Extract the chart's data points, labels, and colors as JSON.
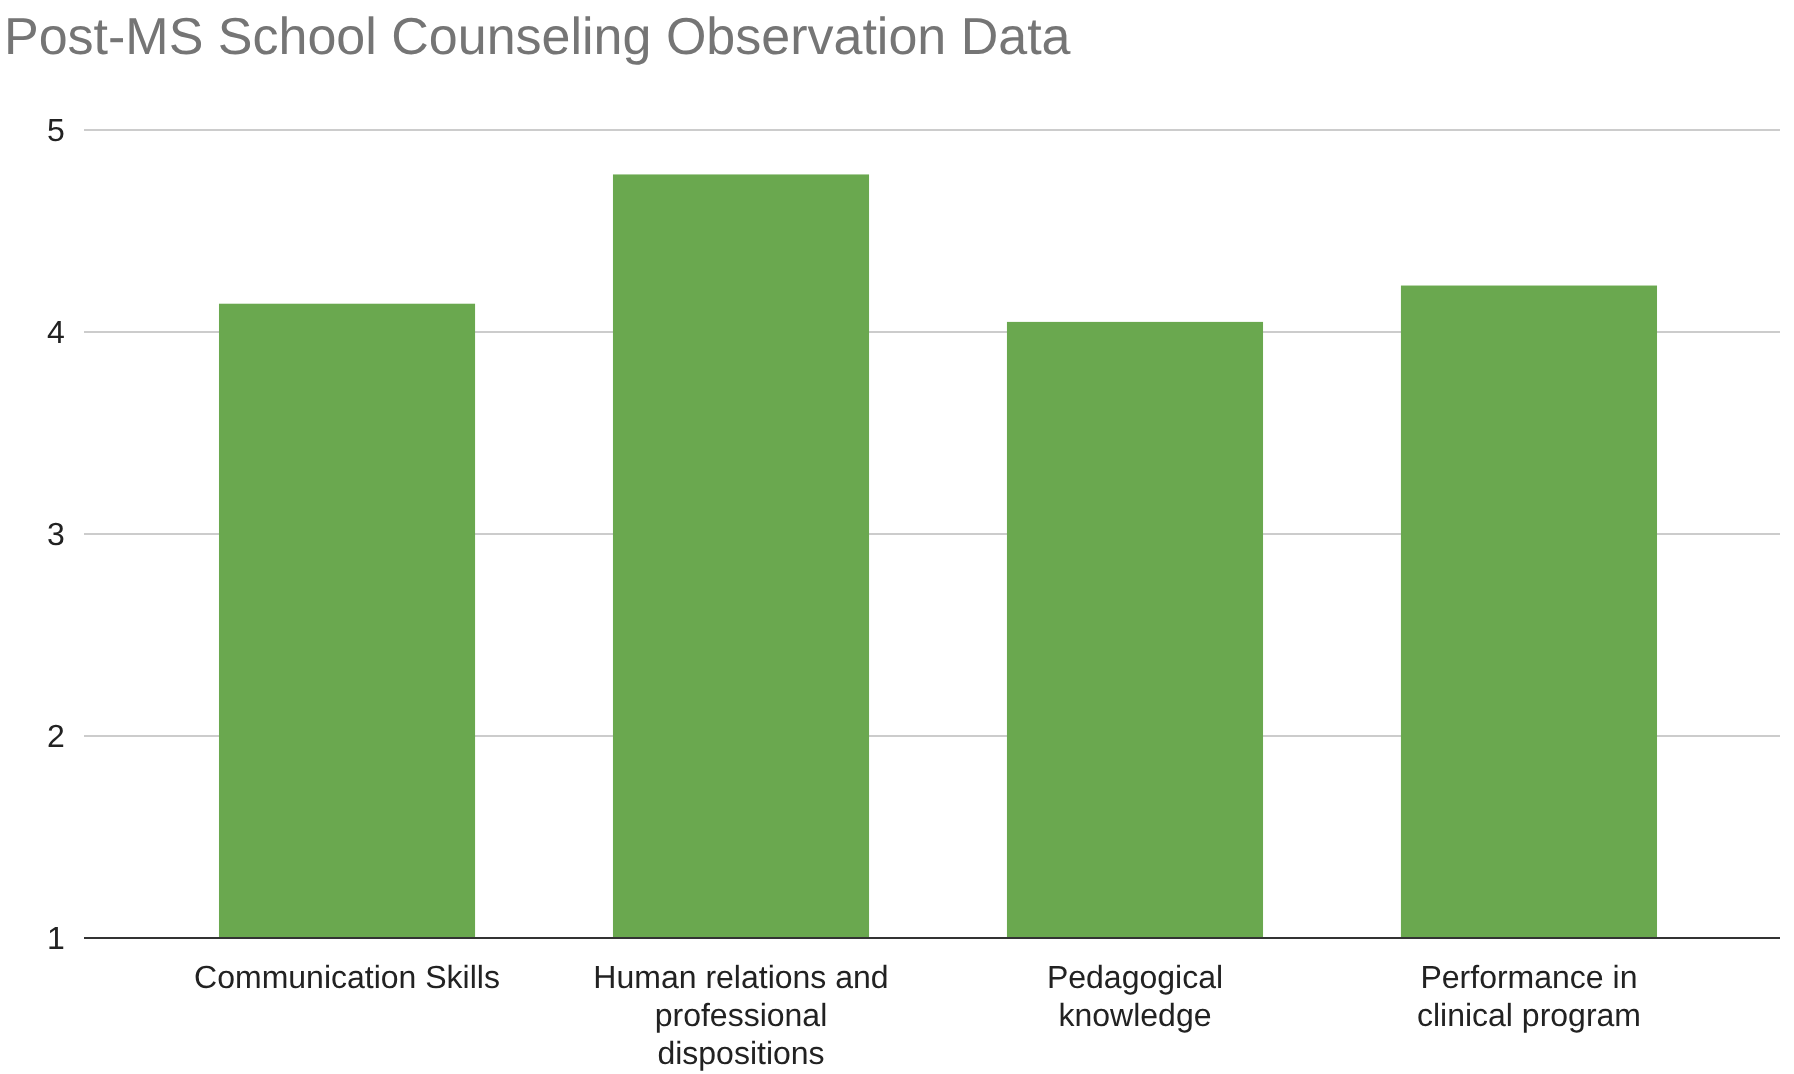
{
  "chart_data": {
    "type": "bar",
    "title": "Post-MS School Counseling Observation Data",
    "categories": [
      "Communication Skills",
      "Human relations and professional dispositions",
      "Pedagogical knowledge",
      "Performance in clinical program"
    ],
    "values": [
      4.14,
      4.78,
      4.05,
      4.23
    ],
    "color": "#6aa84f",
    "ylim": [
      1,
      5
    ],
    "yticks": [
      1,
      2,
      3,
      4,
      5
    ],
    "grid": "y"
  }
}
